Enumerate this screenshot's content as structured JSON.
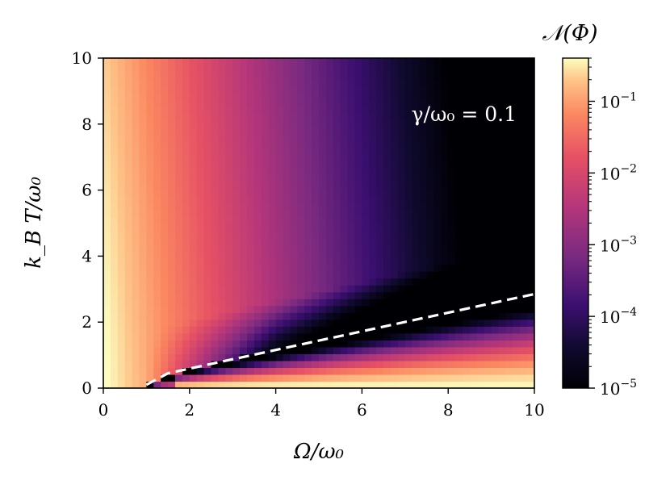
{
  "chart_data": {
    "type": "heatmap",
    "x": {
      "label": "Ω/ω₀",
      "range": [
        0,
        10
      ],
      "ticks": [
        0,
        2,
        4,
        6,
        8,
        10
      ],
      "tick_labels": [
        "0",
        "2",
        "4",
        "6",
        "8",
        "10"
      ]
    },
    "y": {
      "label": "k_B T/ω₀",
      "range": [
        0,
        10
      ],
      "ticks": [
        0,
        2,
        4,
        6,
        8,
        10
      ],
      "tick_labels": [
        "0",
        "2",
        "4",
        "6",
        "8",
        "10"
      ]
    },
    "colorbar": {
      "title": "𝒩(Φ)",
      "scale": "log",
      "range": [
        1e-05,
        0.4
      ],
      "ticks": [
        1e-05,
        0.0001,
        0.001,
        0.01,
        0.1
      ],
      "tick_labels": [
        "10",
        "10",
        "10",
        "10",
        "10"
      ],
      "tick_exponents": [
        "−5",
        "−4",
        "−3",
        "−2",
        "−1"
      ],
      "colormap": "magma"
    },
    "annotation": {
      "text": "γ/ω₀ = 0.1",
      "color": "#ffffff"
    },
    "boundary_line": {
      "style": "dashed",
      "color": "#ffffff",
      "points": [
        [
          1.0,
          0.1
        ],
        [
          1.5,
          0.45
        ],
        [
          10,
          2.85
        ]
      ]
    },
    "grid": false
  }
}
